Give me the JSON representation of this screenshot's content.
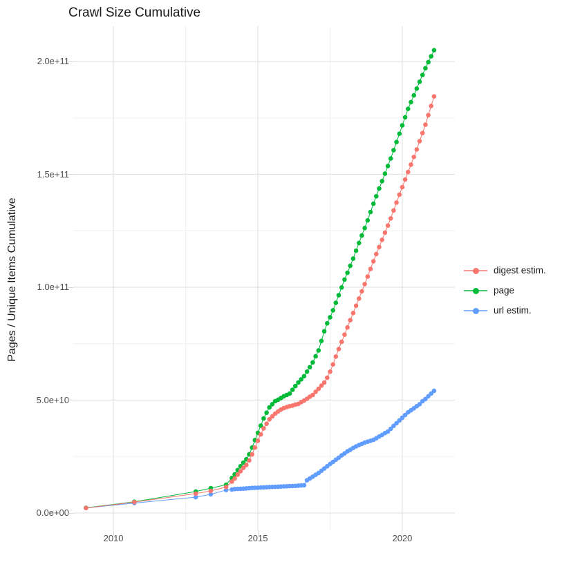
{
  "chart_data": {
    "type": "line",
    "title": "Crawl Size Cumulative",
    "xlabel": "",
    "ylabel": "Pages / Unique Items Cumulative",
    "x_unit": "year (crawl date)",
    "values_unit": "pages / unique items, in billions (1e9)",
    "grid": true,
    "background": "#FFFFFF",
    "gridline_major_color": "#E3E3E3",
    "gridline_minor_color": "#F0F0F0",
    "marker": "point-on-line",
    "x": [
      2009.05,
      2010.72,
      2012.85,
      2013.37,
      2013.9,
      2014.1,
      2014.2,
      2014.3,
      2014.4,
      2014.5,
      2014.6,
      2014.7,
      2014.8,
      2014.9,
      2015.0,
      2015.1,
      2015.2,
      2015.3,
      2015.4,
      2015.5,
      2015.6,
      2015.7,
      2015.8,
      2015.9,
      2016.0,
      2016.1,
      2016.2,
      2016.3,
      2016.4,
      2016.5,
      2016.6,
      2016.7,
      2016.8,
      2016.9,
      2017.0,
      2017.1,
      2017.2,
      2017.3,
      2017.4,
      2017.5,
      2017.6,
      2017.7,
      2017.8,
      2017.9,
      2018.0,
      2018.1,
      2018.2,
      2018.3,
      2018.4,
      2018.5,
      2018.6,
      2018.7,
      2018.8,
      2018.9,
      2019.0,
      2019.1,
      2019.2,
      2019.3,
      2019.4,
      2019.5,
      2019.6,
      2019.7,
      2019.8,
      2019.9,
      2020.0,
      2020.1,
      2020.2,
      2020.3,
      2020.4,
      2020.5,
      2020.6,
      2020.7,
      2020.8,
      2020.9,
      2021.0,
      2021.1
    ],
    "series": [
      {
        "name": "digest estim.",
        "color": "#F8766D",
        "values": [
          2.2,
          4.8,
          8.6,
          9.8,
          11.5,
          13.9,
          15.3,
          17.0,
          18.5,
          20.0,
          21.3,
          23.3,
          26.0,
          29.0,
          32.0,
          34.8,
          37.5,
          39.5,
          41.5,
          42.8,
          44.0,
          45.0,
          45.8,
          46.5,
          46.9,
          47.3,
          47.6,
          48.0,
          48.3,
          49.1,
          49.8,
          50.6,
          51.5,
          52.3,
          53.7,
          55.0,
          56.4,
          57.8,
          59.9,
          62.6,
          65.8,
          69.3,
          72.6,
          75.8,
          79.0,
          82.2,
          85.4,
          88.6,
          91.8,
          95.0,
          98.2,
          101.4,
          104.7,
          108.1,
          111.5,
          114.7,
          117.8,
          121.0,
          124.2,
          127.3,
          130.5,
          134.0,
          137.5,
          141.0,
          144.3,
          147.7,
          151.0,
          154.3,
          157.7,
          161.0,
          164.7,
          168.3,
          172.0,
          176.2,
          180.3,
          184.5
        ]
      },
      {
        "name": "page",
        "color": "#00BA38",
        "values": [
          2.3,
          5.0,
          9.5,
          11.0,
          12.5,
          15.5,
          17.1,
          19.0,
          20.7,
          22.3,
          23.8,
          26.0,
          29.0,
          32.3,
          35.5,
          38.7,
          41.9,
          44.4,
          46.8,
          48.2,
          49.5,
          50.2,
          50.9,
          51.7,
          52.3,
          52.9,
          54.6,
          56.2,
          57.8,
          59.2,
          60.6,
          62.6,
          64.6,
          66.7,
          69.4,
          72.0,
          76.2,
          80.5,
          84.0,
          86.7,
          89.8,
          93.1,
          96.5,
          99.9,
          103.4,
          106.4,
          109.5,
          112.7,
          116.2,
          119.6,
          122.9,
          126.2,
          129.6,
          133.3,
          137.0,
          140.3,
          143.7,
          147.0,
          150.3,
          153.7,
          157.0,
          160.7,
          164.3,
          168.0,
          171.7,
          175.3,
          179.0,
          182.0,
          185.0,
          188.0,
          191.0,
          194.0,
          197.0,
          199.7,
          202.3,
          205.0
        ]
      },
      {
        "name": "url estim.",
        "color": "#619CFF",
        "values": [
          2.2,
          4.4,
          7.0,
          8.3,
          10.2,
          10.4,
          10.6,
          10.7,
          10.75,
          10.8,
          10.9,
          11.0,
          11.1,
          11.15,
          11.2,
          11.3,
          11.35,
          11.4,
          11.5,
          11.55,
          11.6,
          11.65,
          11.7,
          11.8,
          11.85,
          11.9,
          11.95,
          12.0,
          12.1,
          12.2,
          12.3,
          14.5,
          15.3,
          16.1,
          16.9,
          17.7,
          18.7,
          19.7,
          20.7,
          21.7,
          22.6,
          23.6,
          24.5,
          25.5,
          26.4,
          27.3,
          28.0,
          28.8,
          29.5,
          30.1,
          30.6,
          31.2,
          31.6,
          32.0,
          32.4,
          33.1,
          33.9,
          34.6,
          35.4,
          36.1,
          37.3,
          38.6,
          39.8,
          41.0,
          42.2,
          43.4,
          44.6,
          45.5,
          46.4,
          47.3,
          48.2,
          49.5,
          50.5,
          51.7,
          52.9,
          54.1
        ]
      }
    ],
    "x_axis": {
      "ticks": [
        2010,
        2015,
        2020
      ],
      "tick_labels": [
        "2010",
        "2015",
        "2020"
      ],
      "minor_ticks": [
        2012.5,
        2017.5
      ],
      "range": [
        2008.61,
        2021.82
      ]
    },
    "y_axis": {
      "ticks": [
        0,
        50,
        100,
        150,
        200
      ],
      "tick_labels": [
        "0.0e+00",
        "5.0e+10",
        "1.0e+11",
        "1.5e+11",
        "2.0e+11"
      ],
      "minor_ticks": [
        25,
        75,
        125,
        175
      ],
      "range": [
        -7.95,
        215.6
      ]
    },
    "legend": {
      "position": "right",
      "entries": [
        "digest estim.",
        "page",
        "url estim."
      ]
    }
  }
}
